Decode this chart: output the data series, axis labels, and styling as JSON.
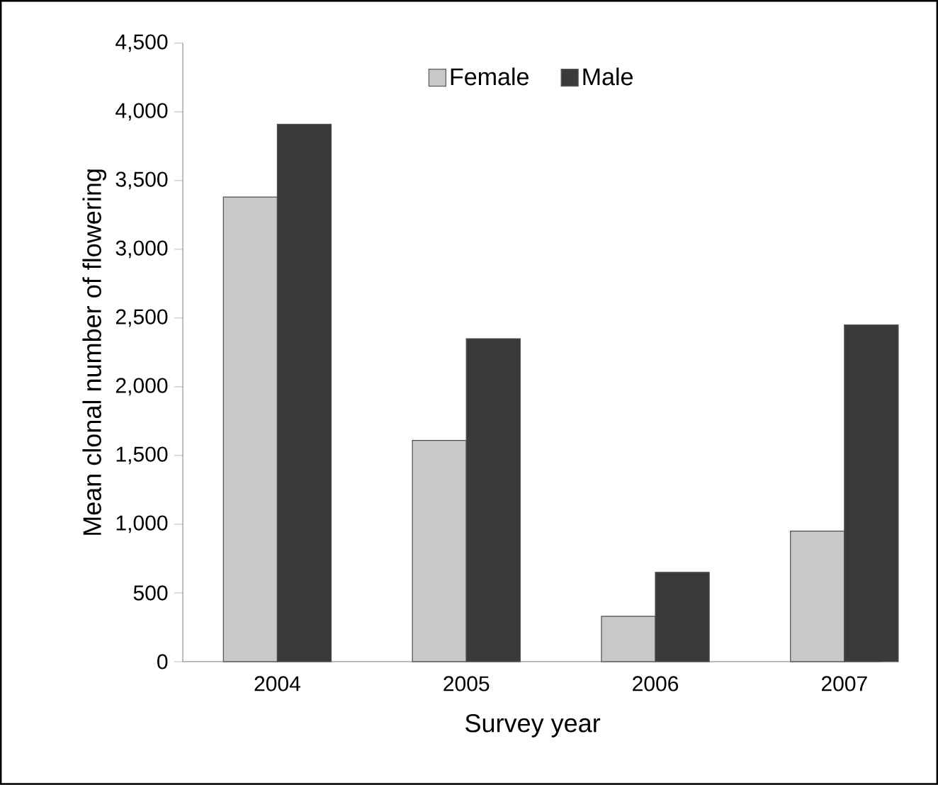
{
  "chart_data": {
    "type": "bar",
    "xlabel": "Survey year",
    "ylabel": "Mean clonal number of flowering",
    "categories": [
      "2004",
      "2005",
      "2006",
      "2007"
    ],
    "series": [
      {
        "name": "Female",
        "color": "#c8c8c8",
        "values": [
          3380,
          1610,
          330,
          950
        ]
      },
      {
        "name": "Male",
        "color": "#3a3a3a",
        "values": [
          3910,
          2350,
          650,
          2450
        ]
      }
    ],
    "ylim": [
      0,
      4500
    ],
    "yticks": [
      0,
      500,
      {
        "value": 1000,
        "label": "1,000"
      },
      {
        "value": 1500,
        "label": "1,500"
      },
      {
        "value": 2000,
        "label": "2,000"
      },
      {
        "value": 2500,
        "label": "2,500"
      },
      {
        "value": 3000,
        "label": "3,000"
      },
      {
        "value": 3500,
        "label": "3,500"
      },
      {
        "value": 4000,
        "label": "4,000"
      },
      {
        "value": 4500,
        "label": "4,500"
      }
    ],
    "grid": false,
    "legend": "top"
  }
}
